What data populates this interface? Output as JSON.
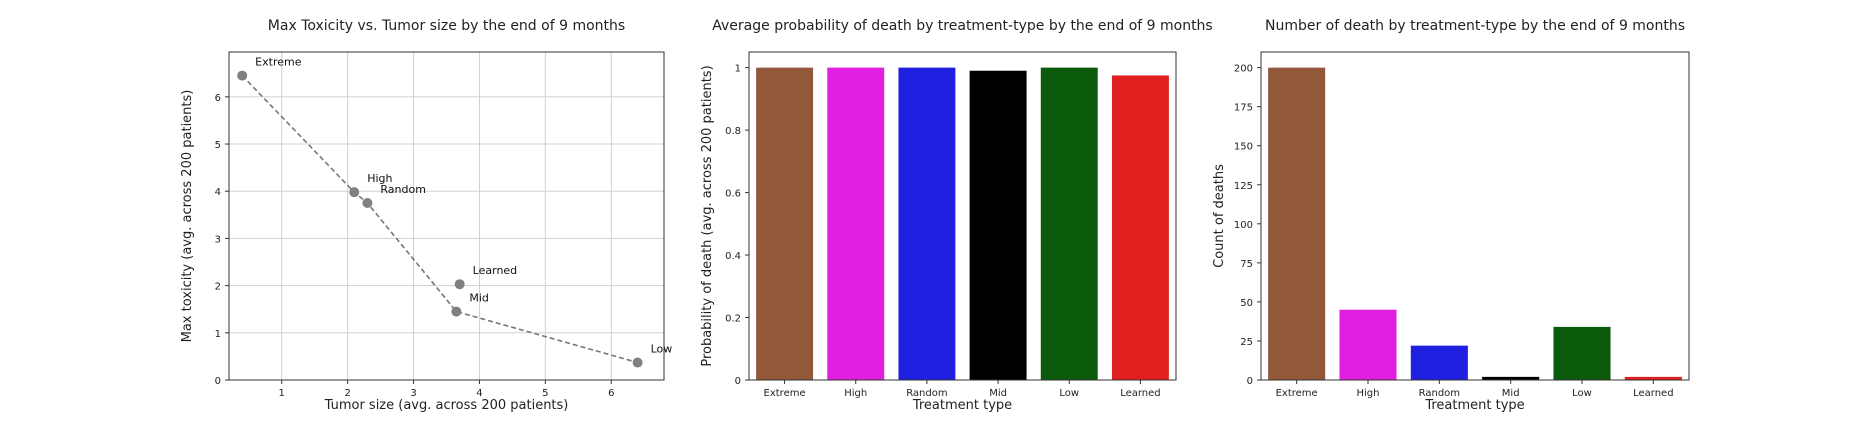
{
  "chart_data": [
    {
      "type": "scatter",
      "title": "Max Toxicity vs. Tumor size by the end of 9 months",
      "xlabel": "Tumor size (avg. across 200 patients)",
      "ylabel": "Max toxicity (avg. across 200 patients)",
      "xlim": [
        0.2,
        6.8
      ],
      "ylim": [
        0,
        6.95
      ],
      "xticks": [
        1,
        2,
        3,
        4,
        5,
        6
      ],
      "yticks": [
        0,
        1,
        2,
        3,
        4,
        5,
        6
      ],
      "grid": true,
      "points": [
        {
          "label": "Extreme",
          "x": 0.4,
          "y": 6.45
        },
        {
          "label": "High",
          "x": 2.1,
          "y": 3.98
        },
        {
          "label": "Random",
          "x": 2.3,
          "y": 3.75
        },
        {
          "label": "Learned",
          "x": 3.7,
          "y": 2.03
        },
        {
          "label": "Mid",
          "x": 3.65,
          "y": 1.45
        },
        {
          "label": "Low",
          "x": 6.4,
          "y": 0.37
        }
      ],
      "frontier": [
        "Extreme",
        "High",
        "Random",
        "Mid",
        "Low"
      ]
    },
    {
      "type": "bar",
      "title": "Average probability of death by treatment-type by the end of 9 months",
      "xlabel": "Treatment type",
      "ylabel": "Probability of death (avg. across 200 patients)",
      "ylim": [
        0,
        1.05
      ],
      "yticks": [
        0.0,
        0.2,
        0.4,
        0.6,
        0.8,
        1.0
      ],
      "categories": [
        "Extreme",
        "High",
        "Random",
        "Mid",
        "Low",
        "Learned"
      ],
      "values": [
        1.0,
        1.0,
        1.0,
        0.99,
        1.0,
        0.975
      ],
      "colors": [
        "#93583a",
        "#e01fe0",
        "#1f1fe0",
        "#000000",
        "#0b5a0b",
        "#e01f1f"
      ]
    },
    {
      "type": "bar",
      "title": "Number of death by treatment-type by the end of 9 months",
      "xlabel": "Treatment type",
      "ylabel": "Count of deaths",
      "ylim": [
        0,
        210
      ],
      "yticks": [
        0,
        25,
        50,
        75,
        100,
        125,
        150,
        175,
        200
      ],
      "categories": [
        "Extreme",
        "High",
        "Random",
        "Mid",
        "Low",
        "Learned"
      ],
      "values": [
        200,
        45,
        22,
        2,
        34,
        2
      ],
      "colors": [
        "#93583a",
        "#e01fe0",
        "#1f1fe0",
        "#000000",
        "#0b5a0b",
        "#e01f1f"
      ]
    }
  ]
}
